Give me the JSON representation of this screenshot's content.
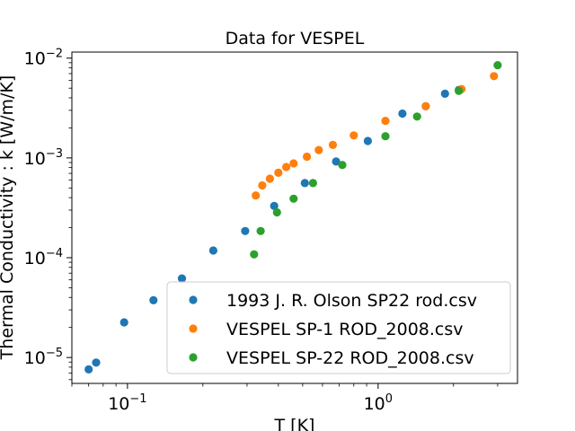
{
  "chart_data": {
    "type": "scatter",
    "title": "Data for VESPEL",
    "xlabel": "T [K]",
    "ylabel": "Thermal Conductivity : k [W/m/K]",
    "xscale": "log",
    "yscale": "log",
    "xlim": [
      0.06,
      3.6
    ],
    "ylim": [
      5.5e-06,
      0.0115
    ],
    "grid": false,
    "legend_position": "lower-right",
    "x_ticks": [
      {
        "value": 0.1,
        "base": "10",
        "exp": "−1"
      },
      {
        "value": 1,
        "base": "10",
        "exp": "0"
      }
    ],
    "y_ticks": [
      {
        "value": 1e-05,
        "base": "10",
        "exp": "−5"
      },
      {
        "value": 0.0001,
        "base": "10",
        "exp": "−4"
      },
      {
        "value": 0.001,
        "base": "10",
        "exp": "−3"
      },
      {
        "value": 0.01,
        "base": "10",
        "exp": "−2"
      }
    ],
    "series": [
      {
        "name": "1993 J. R. Olson SP22 rod.csv",
        "color": "#1f77b4",
        "points": [
          [
            0.07,
            7.6e-06
          ],
          [
            0.075,
            8.9e-06
          ],
          [
            0.097,
            2.25e-05
          ],
          [
            0.127,
            3.75e-05
          ],
          [
            0.165,
            6.2e-05
          ],
          [
            0.22,
            0.000118
          ],
          [
            0.295,
            0.000185
          ],
          [
            0.385,
            0.00033
          ],
          [
            0.51,
            0.00056
          ],
          [
            0.68,
            0.00092
          ],
          [
            0.91,
            0.00148
          ],
          [
            1.25,
            0.00278
          ],
          [
            1.55,
            0.0033
          ],
          [
            1.85,
            0.0044
          ],
          [
            2.1,
            0.0048
          ]
        ]
      },
      {
        "name": "VESPEL SP-1 ROD_2008.csv",
        "color": "#ff7f0e",
        "points": [
          [
            0.325,
            0.00042
          ],
          [
            0.345,
            0.00053
          ],
          [
            0.37,
            0.00062
          ],
          [
            0.4,
            0.00071
          ],
          [
            0.43,
            0.00081
          ],
          [
            0.46,
            0.00088
          ],
          [
            0.52,
            0.00103
          ],
          [
            0.58,
            0.0012
          ],
          [
            0.66,
            0.00135
          ],
          [
            0.8,
            0.00168
          ],
          [
            1.07,
            0.00235
          ],
          [
            1.55,
            0.0033
          ],
          [
            2.15,
            0.0049
          ],
          [
            2.9,
            0.0066
          ]
        ]
      },
      {
        "name": "VESPEL SP-22 ROD_2008.csv",
        "color": "#2ca02c",
        "points": [
          [
            0.32,
            0.000108
          ],
          [
            0.34,
            0.000185
          ],
          [
            0.395,
            0.000285
          ],
          [
            0.46,
            0.00039
          ],
          [
            0.55,
            0.00056
          ],
          [
            0.72,
            0.00085
          ],
          [
            1.07,
            0.00165
          ],
          [
            1.43,
            0.0026
          ],
          [
            2.1,
            0.0047
          ],
          [
            3.0,
            0.0085
          ]
        ]
      }
    ]
  }
}
